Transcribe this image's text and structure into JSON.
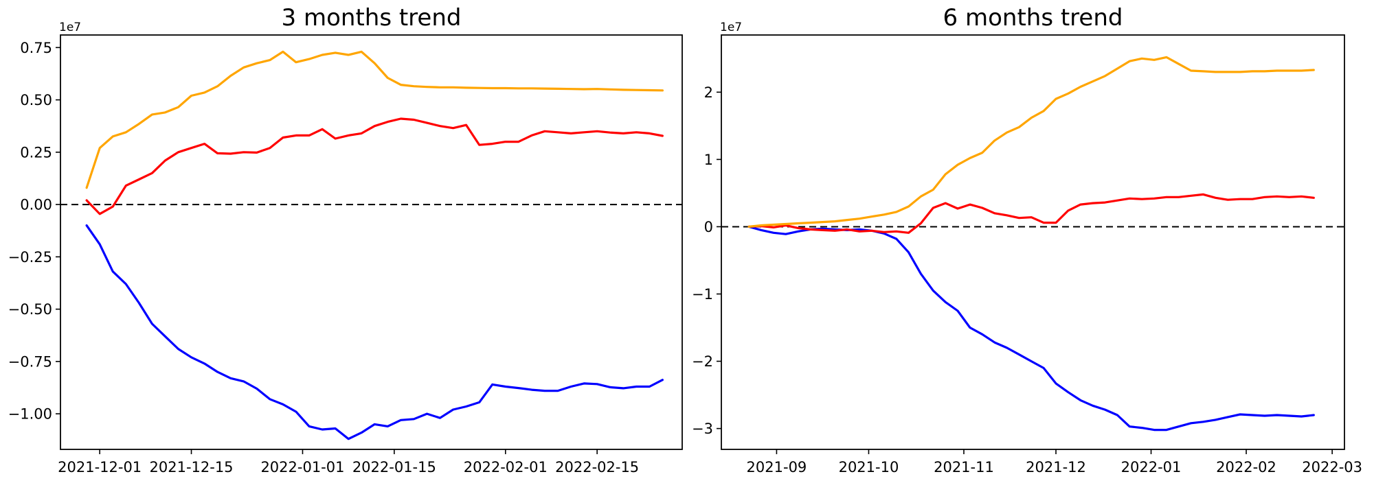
{
  "figure": {
    "background": "#ffffff",
    "axis_color": "#000000",
    "text_color": "#000000"
  },
  "chart_data": [
    {
      "type": "line",
      "title": "3 months trend",
      "y_offset_label": "1e7",
      "y_unit_multiplier": 10000000,
      "grid": false,
      "legend": "none",
      "xlim": [
        "2021-11-25",
        "2022-02-28"
      ],
      "ylim": [
        -1.17,
        0.81
      ],
      "x_ticks": [
        {
          "date": "2021-12-01",
          "label": "2021-12-01"
        },
        {
          "date": "2021-12-15",
          "label": "2021-12-15"
        },
        {
          "date": "2022-01-01",
          "label": "2022-01-01"
        },
        {
          "date": "2022-01-15",
          "label": "2022-01-15"
        },
        {
          "date": "2022-02-01",
          "label": "2022-02-01"
        },
        {
          "date": "2022-02-15",
          "label": "2022-02-15"
        }
      ],
      "y_ticks": [
        {
          "value": 0.75,
          "label": "0.75"
        },
        {
          "value": 0.5,
          "label": "0.50"
        },
        {
          "value": 0.25,
          "label": "0.25"
        },
        {
          "value": 0.0,
          "label": "0.00"
        },
        {
          "value": -0.25,
          "label": "−0.25"
        },
        {
          "value": -0.5,
          "label": "−0.50"
        },
        {
          "value": -0.75,
          "label": "−0.75"
        },
        {
          "value": -1.0,
          "label": "−1.00"
        }
      ],
      "zero_line": {
        "value": 0,
        "style": "dashed",
        "color": "#000000"
      },
      "x": [
        "2021-11-29",
        "2021-12-01",
        "2021-12-03",
        "2021-12-05",
        "2021-12-07",
        "2021-12-09",
        "2021-12-11",
        "2021-12-13",
        "2021-12-15",
        "2021-12-17",
        "2021-12-19",
        "2021-12-21",
        "2021-12-23",
        "2021-12-25",
        "2021-12-27",
        "2021-12-29",
        "2021-12-31",
        "2022-01-02",
        "2022-01-04",
        "2022-01-06",
        "2022-01-08",
        "2022-01-10",
        "2022-01-12",
        "2022-01-14",
        "2022-01-16",
        "2022-01-18",
        "2022-01-20",
        "2022-01-22",
        "2022-01-24",
        "2022-01-26",
        "2022-01-28",
        "2022-01-30",
        "2022-02-01",
        "2022-02-03",
        "2022-02-05",
        "2022-02-07",
        "2022-02-09",
        "2022-02-11",
        "2022-02-13",
        "2022-02-15",
        "2022-02-17",
        "2022-02-19",
        "2022-02-21",
        "2022-02-23",
        "2022-02-25"
      ],
      "series": [
        {
          "name": "orange-line",
          "color": "#FFA500",
          "values": [
            0.08,
            0.27,
            0.325,
            0.345,
            0.385,
            0.43,
            0.44,
            0.465,
            0.52,
            0.535,
            0.565,
            0.615,
            0.655,
            0.675,
            0.69,
            0.73,
            0.68,
            0.695,
            0.715,
            0.725,
            0.715,
            0.73,
            0.675,
            0.605,
            0.572,
            0.565,
            0.562,
            0.56,
            0.56,
            0.558,
            0.557,
            0.556,
            0.556,
            0.555,
            0.555,
            0.554,
            0.553,
            0.552,
            0.551,
            0.552,
            0.55,
            0.548,
            0.547,
            0.546,
            0.545
          ]
        },
        {
          "name": "red-line",
          "color": "#FF0000",
          "values": [
            0.02,
            -0.045,
            -0.01,
            0.09,
            0.12,
            0.15,
            0.21,
            0.25,
            0.27,
            0.29,
            0.245,
            0.243,
            0.25,
            0.248,
            0.27,
            0.32,
            0.33,
            0.33,
            0.36,
            0.315,
            0.33,
            0.34,
            0.375,
            0.395,
            0.41,
            0.405,
            0.39,
            0.375,
            0.365,
            0.38,
            0.285,
            0.29,
            0.3,
            0.3,
            0.33,
            0.35,
            0.345,
            0.34,
            0.345,
            0.35,
            0.344,
            0.34,
            0.345,
            0.34,
            0.328
          ]
        },
        {
          "name": "blue-line",
          "color": "#0000FF",
          "values": [
            -0.1,
            -0.19,
            -0.32,
            -0.38,
            -0.47,
            -0.57,
            -0.63,
            -0.69,
            -0.73,
            -0.76,
            -0.8,
            -0.83,
            -0.845,
            -0.88,
            -0.93,
            -0.955,
            -0.99,
            -1.06,
            -1.075,
            -1.07,
            -1.12,
            -1.09,
            -1.05,
            -1.06,
            -1.03,
            -1.025,
            -1.0,
            -1.02,
            -0.98,
            -0.965,
            -0.945,
            -0.86,
            -0.87,
            -0.877,
            -0.885,
            -0.89,
            -0.89,
            -0.87,
            -0.855,
            -0.858,
            -0.873,
            -0.878,
            -0.87,
            -0.87,
            -0.838
          ]
        }
      ]
    },
    {
      "type": "line",
      "title": "6 months trend",
      "y_offset_label": "1e7",
      "y_unit_multiplier": 10000000,
      "grid": false,
      "legend": "none",
      "xlim": [
        "2021-08-14",
        "2022-03-05"
      ],
      "ylim": [
        -3.31,
        2.85
      ],
      "x_ticks": [
        {
          "date": "2021-09-01",
          "label": "2021-09"
        },
        {
          "date": "2021-10-01",
          "label": "2021-10"
        },
        {
          "date": "2021-11-01",
          "label": "2021-11"
        },
        {
          "date": "2021-12-01",
          "label": "2021-12"
        },
        {
          "date": "2022-01-01",
          "label": "2022-01"
        },
        {
          "date": "2022-02-01",
          "label": "2022-02"
        },
        {
          "date": "2022-03-01",
          "label": "2022-03"
        }
      ],
      "y_ticks": [
        {
          "value": 2,
          "label": "2"
        },
        {
          "value": 1,
          "label": "1"
        },
        {
          "value": 0,
          "label": "0"
        },
        {
          "value": -1,
          "label": "−1"
        },
        {
          "value": -2,
          "label": "−2"
        },
        {
          "value": -3,
          "label": "−3"
        }
      ],
      "zero_line": {
        "value": 0,
        "style": "dashed",
        "color": "#000000"
      },
      "x": [
        "2021-08-23",
        "2021-08-27",
        "2021-08-31",
        "2021-09-04",
        "2021-09-08",
        "2021-09-12",
        "2021-09-16",
        "2021-09-20",
        "2021-09-24",
        "2021-09-28",
        "2021-10-02",
        "2021-10-06",
        "2021-10-10",
        "2021-10-14",
        "2021-10-18",
        "2021-10-22",
        "2021-10-26",
        "2021-10-30",
        "2021-11-03",
        "2021-11-07",
        "2021-11-11",
        "2021-11-15",
        "2021-11-19",
        "2021-11-23",
        "2021-11-27",
        "2021-12-01",
        "2021-12-05",
        "2021-12-09",
        "2021-12-13",
        "2021-12-17",
        "2021-12-21",
        "2021-12-25",
        "2021-12-29",
        "2022-01-02",
        "2022-01-06",
        "2022-01-10",
        "2022-01-14",
        "2022-01-18",
        "2022-01-22",
        "2022-01-26",
        "2022-01-30",
        "2022-02-03",
        "2022-02-07",
        "2022-02-11",
        "2022-02-15",
        "2022-02-19",
        "2022-02-23"
      ],
      "series": [
        {
          "name": "orange-line",
          "color": "#FFA500",
          "values": [
            0.0,
            0.02,
            0.03,
            0.04,
            0.05,
            0.06,
            0.07,
            0.08,
            0.1,
            0.12,
            0.15,
            0.18,
            0.22,
            0.3,
            0.45,
            0.55,
            0.78,
            0.92,
            1.02,
            1.1,
            1.28,
            1.4,
            1.48,
            1.62,
            1.72,
            1.9,
            1.98,
            2.08,
            2.16,
            2.24,
            2.35,
            2.46,
            2.5,
            2.48,
            2.52,
            2.42,
            2.32,
            2.31,
            2.3,
            2.3,
            2.3,
            2.31,
            2.31,
            2.32,
            2.32,
            2.32,
            2.33
          ]
        },
        {
          "name": "red-line",
          "color": "#FF0000",
          "values": [
            0.0,
            0.01,
            -0.01,
            0.02,
            -0.02,
            -0.04,
            -0.05,
            -0.06,
            -0.04,
            -0.07,
            -0.06,
            -0.08,
            -0.07,
            -0.09,
            0.05,
            0.28,
            0.35,
            0.27,
            0.33,
            0.28,
            0.2,
            0.17,
            0.13,
            0.14,
            0.06,
            0.06,
            0.24,
            0.33,
            0.35,
            0.36,
            0.39,
            0.42,
            0.41,
            0.42,
            0.44,
            0.44,
            0.46,
            0.48,
            0.43,
            0.4,
            0.41,
            0.41,
            0.44,
            0.45,
            0.44,
            0.45,
            0.43
          ]
        },
        {
          "name": "blue-line",
          "color": "#0000FF",
          "values": [
            0.0,
            -0.05,
            -0.09,
            -0.11,
            -0.07,
            -0.04,
            -0.03,
            -0.04,
            -0.05,
            -0.04,
            -0.06,
            -0.1,
            -0.18,
            -0.38,
            -0.7,
            -0.95,
            -1.12,
            -1.25,
            -1.5,
            -1.6,
            -1.72,
            -1.8,
            -1.9,
            -2.0,
            -2.1,
            -2.33,
            -2.46,
            -2.58,
            -2.66,
            -2.72,
            -2.8,
            -2.97,
            -2.99,
            -3.02,
            -3.02,
            -2.97,
            -2.92,
            -2.9,
            -2.87,
            -2.83,
            -2.79,
            -2.8,
            -2.81,
            -2.8,
            -2.81,
            -2.82,
            -2.8
          ]
        }
      ]
    }
  ]
}
